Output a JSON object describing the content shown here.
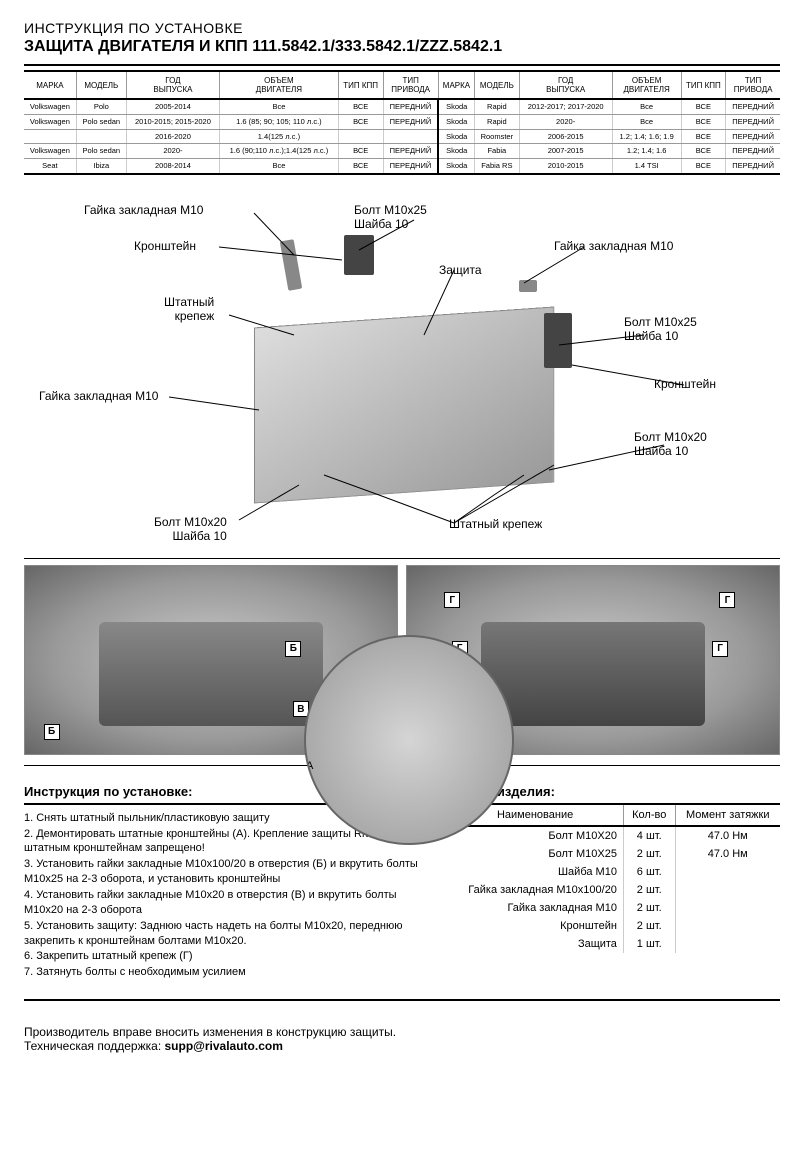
{
  "header": {
    "subtitle": "ИНСТРУКЦИЯ ПО УСТАНОВКЕ",
    "title": "ЗАЩИТА ДВИГАТЕЛЯ И КПП 111.5842.1/333.5842.1/ZZZ.5842.1"
  },
  "compat": {
    "headers": [
      "МАРКА",
      "МОДЕЛЬ",
      "ГОД\nВЫПУСКА",
      "ОБЪЕМ\nДВИГАТЕЛЯ",
      "ТИП КПП",
      "ТИП\nПРИВОДА",
      "МАРКА",
      "МОДЕЛЬ",
      "ГОД\nВЫПУСКА",
      "ОБЪЕМ\nДВИГАТЕЛЯ",
      "ТИП КПП",
      "ТИП\nПРИВОДА"
    ],
    "rows": [
      [
        "Volkswagen",
        "Polo",
        "2005-2014",
        "Все",
        "ВСЕ",
        "ПЕРЕДНИЙ",
        "Skoda",
        "Rapid",
        "2012-2017; 2017-2020",
        "Все",
        "ВСЕ",
        "ПЕРЕДНИЙ"
      ],
      [
        "Volkswagen",
        "Polo sedan",
        "2010-2015; 2015-2020",
        "1.6 (85; 90; 105; 110 л.с.)",
        "ВСЕ",
        "ПЕРЕДНИЙ",
        "Skoda",
        "Rapid",
        "2020-",
        "Все",
        "ВСЕ",
        "ПЕРЕДНИЙ"
      ],
      [
        "",
        "",
        "2016-2020",
        "1.4(125 л.с.)",
        "",
        "",
        "Skoda",
        "Roomster",
        "2006-2015",
        "1.2; 1.4; 1.6; 1.9",
        "ВСЕ",
        "ПЕРЕДНИЙ"
      ],
      [
        "Volkswagen",
        "Polo sedan",
        "2020-",
        "1.6 (90;110 л.с.);1.4(125 л.с.)",
        "ВСЕ",
        "ПЕРЕДНИЙ",
        "Skoda",
        "Fabia",
        "2007-2015",
        "1.2; 1.4; 1.6",
        "ВСЕ",
        "ПЕРЕДНИЙ"
      ],
      [
        "Seat",
        "Ibiza",
        "2008-2014",
        "Все",
        "ВСЕ",
        "ПЕРЕДНИЙ",
        "Skoda",
        "Fabia RS",
        "2010-2015",
        "1.4 TSI",
        "ВСЕ",
        "ПЕРЕДНИЙ"
      ]
    ]
  },
  "diagram": {
    "labels": {
      "nut_m10_tl": "Гайка закладная M10",
      "bolt_m10x25_washer": "Болт M10x25\nШайба 10",
      "bracket": "Кронштейн",
      "nut_m10_tr": "Гайка закладная M10",
      "oem_fastener": "Штатный\nкрепеж",
      "protection": "Защита",
      "nut_m10_l": "Гайка закладная M10",
      "bolt_m10x25_r": "Болт M10x25\nШайба 10",
      "bracket_r": "Кронштейн",
      "bolt_m10x20_r": "Болт M10x20\nШайба 10",
      "bolt_m10x20_bl": "Болт M10x20\nШайба 10",
      "oem_fastener_b": "Штатный крепеж"
    }
  },
  "photos": {
    "markers": {
      "A": "А",
      "B": "Б",
      "V": "В",
      "G": "Г"
    }
  },
  "instructions": {
    "title": "Инструкция по установке:",
    "steps": [
      "1. Снять штатный пыльник/пластиковую защиту",
      "2. Демонтировать штатные кронштейны (А). Крепление защиты Rival к штатным кронштейнам запрещено!",
      "3. Установить гайки закладные М10х100/20 в отверстия (Б) и вкрутить болты М10х25 на 2-3 оборота, и установить кронштейны",
      "4. Установить гайки закладные М10х20 в отверстия (В) и вкрутить болты М10х20 на 2-3 оборота",
      "5. Установить защиту: Заднюю часть надеть на болты М10x20, переднюю закрепить к кронштейнам болтами М10х20.",
      "6. Закрепить штатный крепеж (Г)",
      "7. Затянуть болты с необходимым усилием"
    ]
  },
  "bom": {
    "title": "Состав изделия:",
    "headers": [
      "Наименование",
      "Кол-во",
      "Момент затяжки"
    ],
    "rows": [
      [
        "Болт М10Х20",
        "4 шт.",
        "47.0 Нм"
      ],
      [
        "Болт М10Х25",
        "2 шт.",
        "47.0 Нм"
      ],
      [
        "Шайба М10",
        "6 шт.",
        ""
      ],
      [
        "Гайка закладная М10х100/20",
        "2 шт.",
        ""
      ],
      [
        "Гайка закладная М10",
        "2 шт.",
        ""
      ],
      [
        "Кронштейн",
        "2 шт.",
        ""
      ],
      [
        "Защита",
        "1 шт.",
        ""
      ]
    ]
  },
  "footer": {
    "line1": "Производитель вправе вносить изменения в конструкцию защиты.",
    "line2_label": "Техническая поддержка: ",
    "line2_email": "supp@rivalauto.com"
  }
}
